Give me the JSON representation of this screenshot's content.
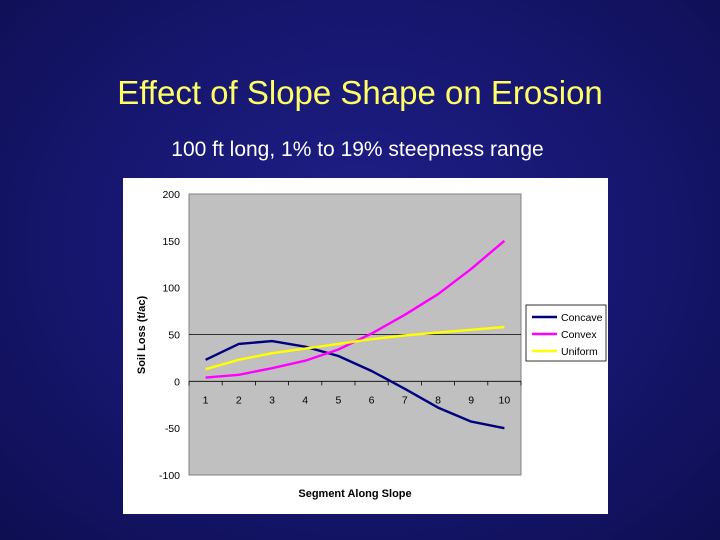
{
  "slide": {
    "title": "Effect of Slope Shape on Erosion",
    "subtitle": "100 ft long, 1% to 19% steepness range"
  },
  "colors": {
    "background": "#16166e",
    "title": "#ffff66",
    "plot_area": "#c0c0c0",
    "concave": "#000080",
    "convex": "#ff00ff",
    "uniform": "#ffff00"
  },
  "chart_data": {
    "type": "line",
    "title": "",
    "xlabel": "Segment Along Slope",
    "ylabel": "Soil Loss (t/ac)",
    "x": [
      1,
      2,
      3,
      4,
      5,
      6,
      7,
      8,
      9,
      10
    ],
    "categories": [
      "1",
      "2",
      "3",
      "4",
      "5",
      "6",
      "7",
      "8",
      "9",
      "10"
    ],
    "ylim": [
      -100,
      200
    ],
    "yticks": [
      200,
      150,
      100,
      50,
      0,
      -50,
      -100
    ],
    "ytick_labels": [
      "200",
      "150",
      "100",
      "50",
      "0",
      "-50",
      "-100"
    ],
    "gridlines": [
      50
    ],
    "legend_position": "right",
    "series": [
      {
        "name": "Concave",
        "color": "#000080",
        "values": [
          23,
          40,
          43,
          37,
          27,
          11,
          -8,
          -28,
          -43,
          -50
        ]
      },
      {
        "name": "Convex",
        "color": "#ff00ff",
        "values": [
          4,
          7,
          14,
          22,
          34,
          51,
          71,
          93,
          120,
          150
        ]
      },
      {
        "name": "Uniform",
        "color": "#ffff00",
        "values": [
          13,
          23,
          30,
          35,
          40,
          45,
          49,
          52,
          55,
          58
        ]
      }
    ]
  }
}
